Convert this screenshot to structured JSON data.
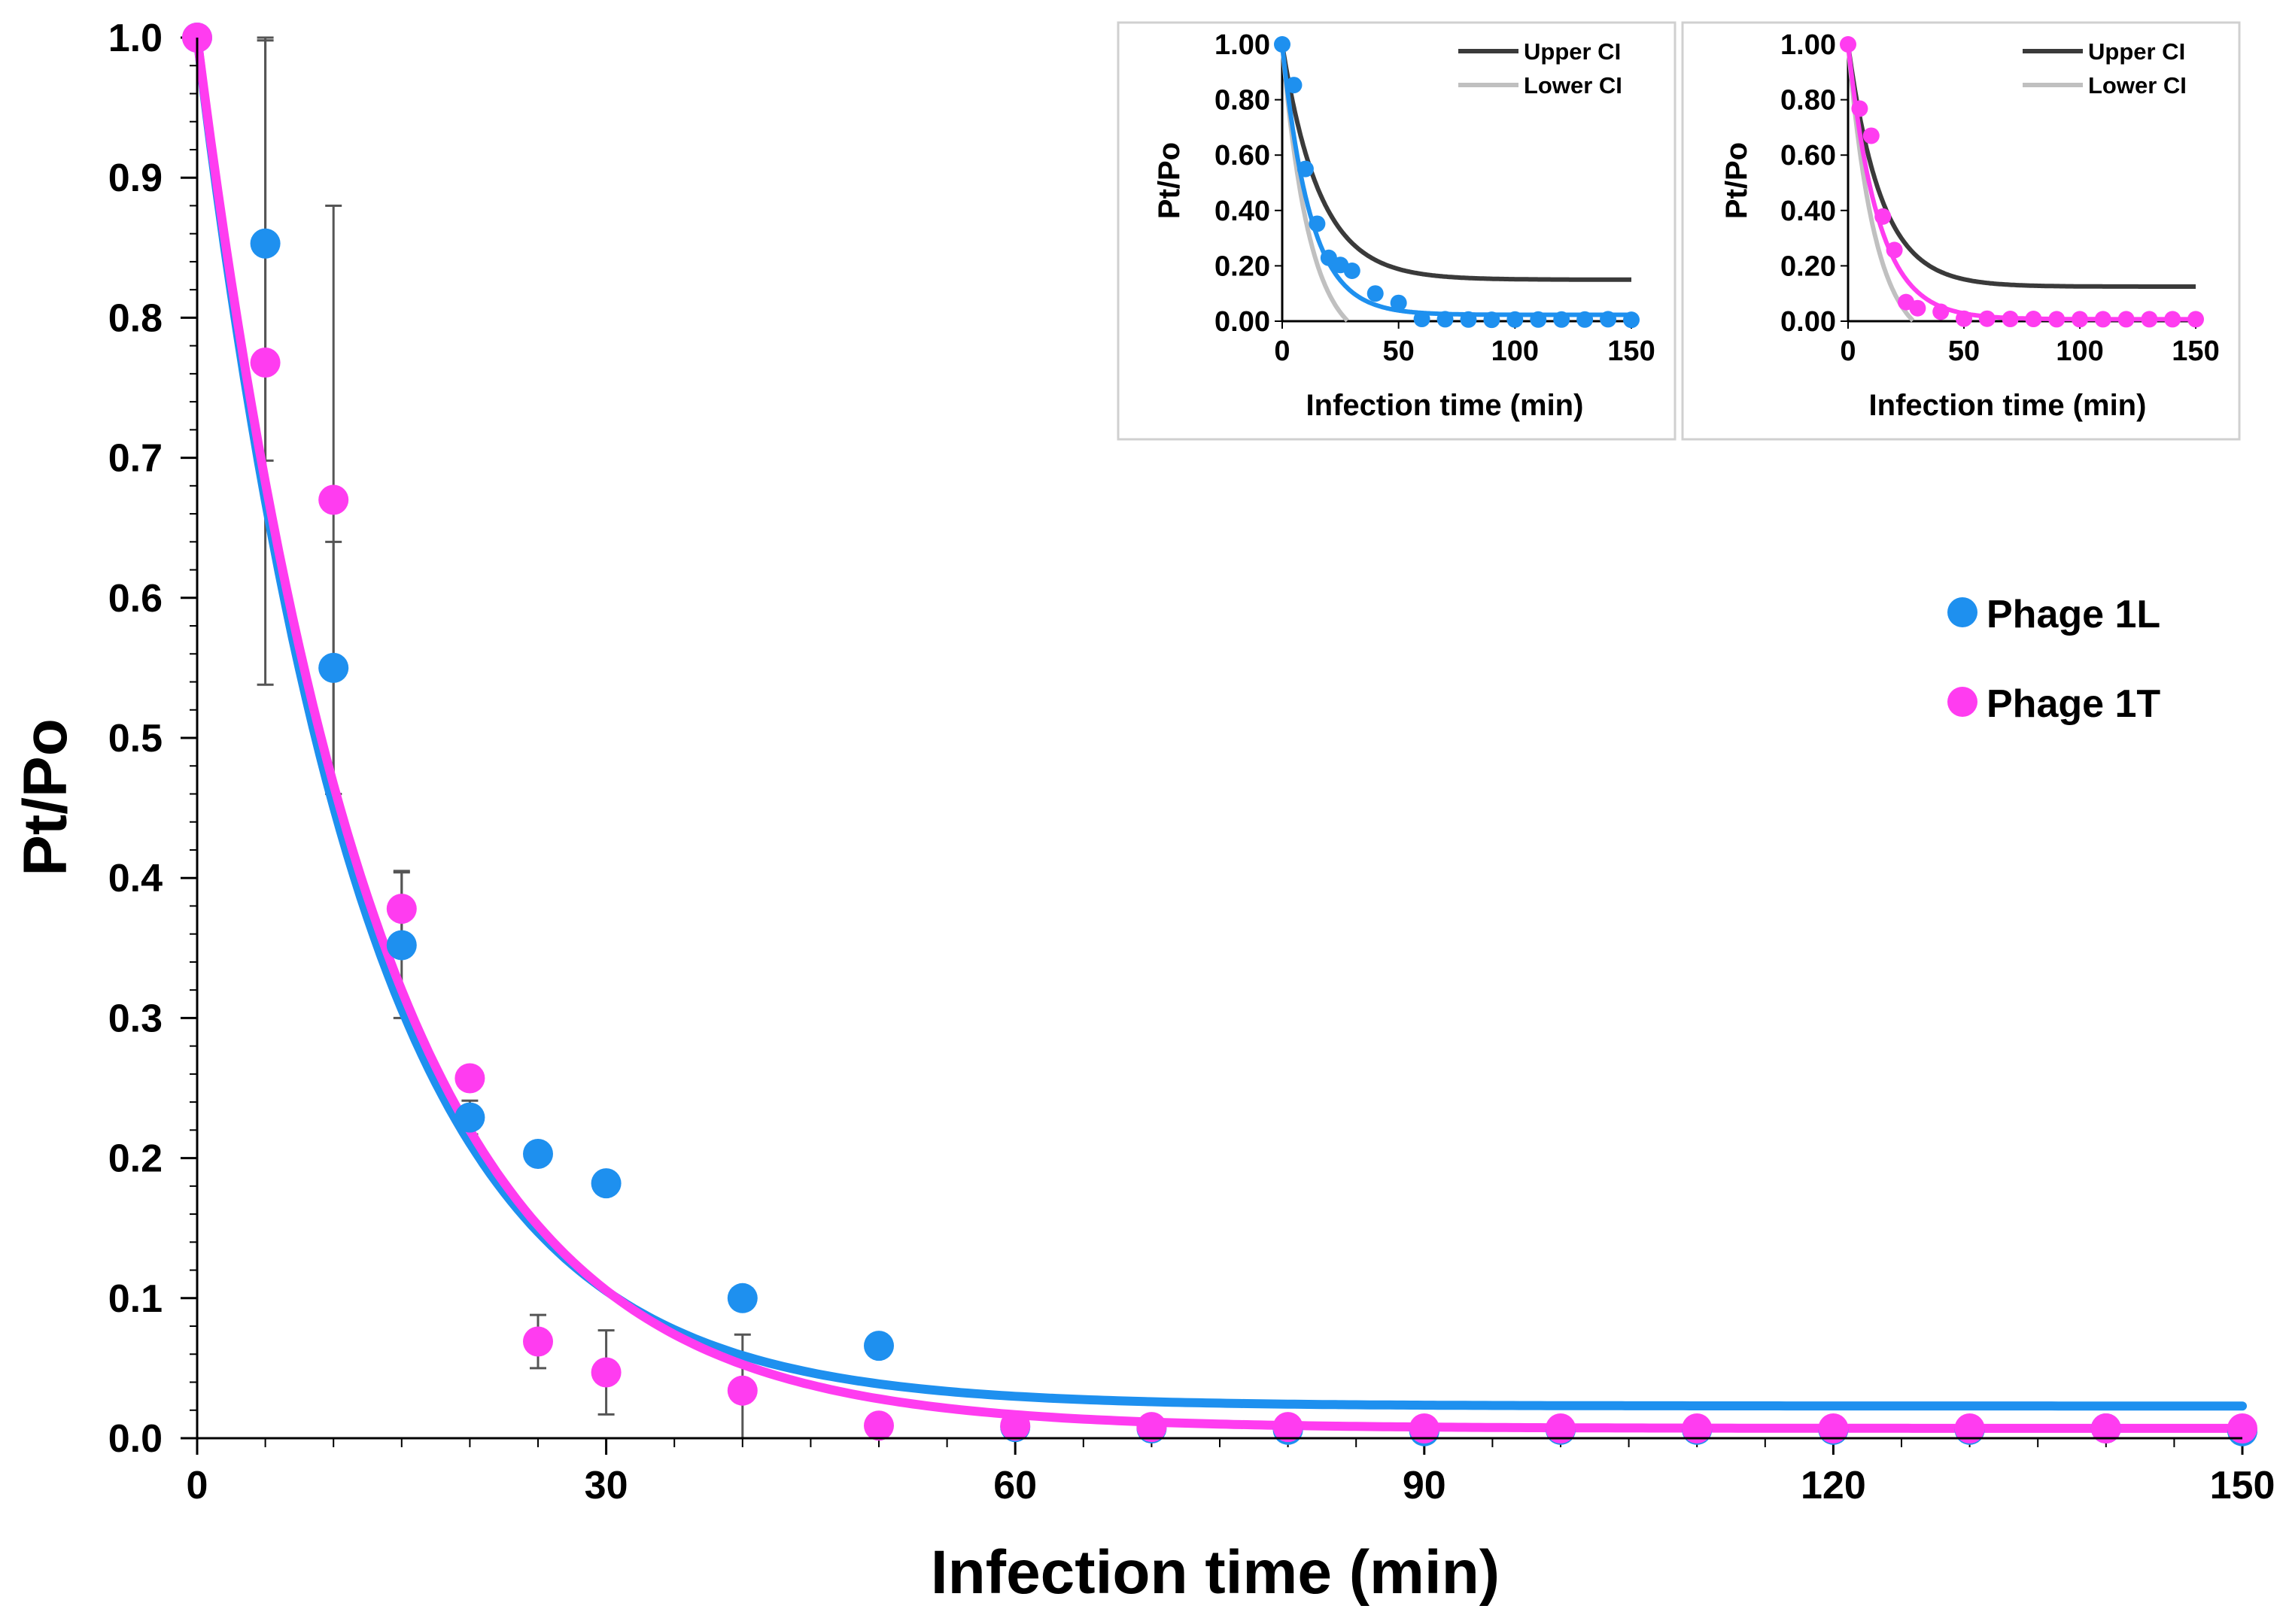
{
  "colors": {
    "phage1L": "#1e90ef",
    "phage1T": "#ff3cf0",
    "upper_ci": "#3a3a3a",
    "lower_ci": "#c0c0c0",
    "axis": "#000000",
    "errorbar": "#555555",
    "inset_border": "#d0d0d0"
  },
  "chart_data": [
    {
      "id": "main",
      "type": "scatter",
      "xlabel": "Infection time (min)",
      "ylabel": "Pt/Po",
      "xlim": [
        0,
        150
      ],
      "ylim": [
        0,
        1.0
      ],
      "xticks": [
        0,
        30,
        60,
        90,
        120,
        150
      ],
      "xtick_labels": [
        "0",
        "30",
        "60",
        "90",
        "120",
        "150"
      ],
      "yticks": [
        0,
        0.1,
        0.2,
        0.3,
        0.4,
        0.5,
        0.6,
        0.7,
        0.8,
        0.9,
        1.0
      ],
      "ytick_labels": [
        "0.0",
        "0.1",
        "0.2",
        "0.3",
        "0.4",
        "0.5",
        "0.6",
        "0.7",
        "0.8",
        "0.9",
        "1.0"
      ],
      "x_minor_step": 5,
      "y_minor_step": 0.02,
      "legend_position": "right",
      "series": [
        {
          "name": "Phage 1L",
          "color_key": "phage1L",
          "points": [
            {
              "x": 0,
              "y": 1.0
            },
            {
              "x": 5,
              "y": 0.853,
              "err": 0.155
            },
            {
              "x": 10,
              "y": 0.55,
              "err": 0.09
            },
            {
              "x": 15,
              "y": 0.352,
              "err": 0.052
            },
            {
              "x": 20,
              "y": 0.229,
              "err": 0.012
            },
            {
              "x": 25,
              "y": 0.203
            },
            {
              "x": 30,
              "y": 0.182
            },
            {
              "x": 40,
              "y": 0.1
            },
            {
              "x": 50,
              "y": 0.066
            },
            {
              "x": 60,
              "y": 0.008
            },
            {
              "x": 70,
              "y": 0.007
            },
            {
              "x": 80,
              "y": 0.006
            },
            {
              "x": 90,
              "y": 0.005
            },
            {
              "x": 100,
              "y": 0.006
            },
            {
              "x": 110,
              "y": 0.006
            },
            {
              "x": 120,
              "y": 0.006
            },
            {
              "x": 130,
              "y": 0.006
            },
            {
              "x": 140,
              "y": 0.007
            },
            {
              "x": 150,
              "y": 0.005
            }
          ],
          "fit": {
            "model": "plateau + span*exp(-k*x)",
            "plateau": 0.023,
            "span": 0.977,
            "k": 0.0825
          }
        },
        {
          "name": "Phage 1T",
          "color_key": "phage1T",
          "points": [
            {
              "x": 0,
              "y": 1.0
            },
            {
              "x": 5,
              "y": 0.768,
              "err": 0.23
            },
            {
              "x": 10,
              "y": 0.67,
              "err": 0.21
            },
            {
              "x": 15,
              "y": 0.378,
              "err": 0.027
            },
            {
              "x": 20,
              "y": 0.257
            },
            {
              "x": 25,
              "y": 0.069,
              "err": 0.019
            },
            {
              "x": 30,
              "y": 0.047,
              "err": 0.03
            },
            {
              "x": 40,
              "y": 0.034,
              "err": 0.04
            },
            {
              "x": 50,
              "y": 0.009
            },
            {
              "x": 60,
              "y": 0.009
            },
            {
              "x": 70,
              "y": 0.008
            },
            {
              "x": 80,
              "y": 0.008
            },
            {
              "x": 90,
              "y": 0.007
            },
            {
              "x": 100,
              "y": 0.007
            },
            {
              "x": 110,
              "y": 0.007
            },
            {
              "x": 120,
              "y": 0.007
            },
            {
              "x": 130,
              "y": 0.007
            },
            {
              "x": 140,
              "y": 0.007
            },
            {
              "x": 150,
              "y": 0.007
            }
          ],
          "fit": {
            "model": "plateau + span*exp(-k*x)",
            "plateau": 0.007,
            "span": 0.993,
            "k": 0.077
          }
        }
      ]
    },
    {
      "id": "inset_1L",
      "type": "scatter",
      "xlabel": "Infection time (min)",
      "ylabel": "Pt/Po",
      "xlim": [
        0,
        150
      ],
      "ylim": [
        0,
        1.0
      ],
      "xticks": [
        0,
        50,
        100,
        150
      ],
      "xtick_labels": [
        "0",
        "50",
        "100",
        "150"
      ],
      "yticks": [
        0,
        0.2,
        0.4,
        0.6,
        0.8,
        1.0
      ],
      "ytick_labels": [
        "0.00",
        "0.20",
        "0.40",
        "0.60",
        "0.80",
        "1.00"
      ],
      "legend_position": "top-right",
      "series": [
        {
          "name": "Phage 1L",
          "color_key": "phage1L",
          "points": [
            {
              "x": 0,
              "y": 1.0
            },
            {
              "x": 5,
              "y": 0.853
            },
            {
              "x": 10,
              "y": 0.55
            },
            {
              "x": 15,
              "y": 0.352
            },
            {
              "x": 20,
              "y": 0.229
            },
            {
              "x": 25,
              "y": 0.203
            },
            {
              "x": 30,
              "y": 0.182
            },
            {
              "x": 40,
              "y": 0.1
            },
            {
              "x": 50,
              "y": 0.066
            },
            {
              "x": 60,
              "y": 0.008
            },
            {
              "x": 70,
              "y": 0.007
            },
            {
              "x": 80,
              "y": 0.006
            },
            {
              "x": 90,
              "y": 0.005
            },
            {
              "x": 100,
              "y": 0.006
            },
            {
              "x": 110,
              "y": 0.006
            },
            {
              "x": 120,
              "y": 0.006
            },
            {
              "x": 130,
              "y": 0.006
            },
            {
              "x": 140,
              "y": 0.007
            },
            {
              "x": 150,
              "y": 0.005
            }
          ],
          "fit": {
            "model": "plateau + span*exp(-k*x)",
            "plateau": 0.023,
            "span": 0.977,
            "k": 0.0825
          }
        }
      ],
      "ci_lines": [
        {
          "name": "Upper CI",
          "color_key": "upper_ci",
          "model": "plateau + span*exp(-k*x)",
          "plateau": 0.15,
          "span": 0.85,
          "k": 0.062
        },
        {
          "name": "Lower CI",
          "color_key": "lower_ci",
          "model": "plateau + span*exp(-k*x)",
          "plateau": -0.1,
          "span": 1.1,
          "k": 0.085
        }
      ]
    },
    {
      "id": "inset_1T",
      "type": "scatter",
      "xlabel": "Infection time (min)",
      "ylabel": "Pt/Po",
      "xlim": [
        0,
        150
      ],
      "ylim": [
        0,
        1.0
      ],
      "xticks": [
        0,
        50,
        100,
        150
      ],
      "xtick_labels": [
        "0",
        "50",
        "100",
        "150"
      ],
      "yticks": [
        0,
        0.2,
        0.4,
        0.6,
        0.8,
        1.0
      ],
      "ytick_labels": [
        "0.00",
        "0.20",
        "0.40",
        "0.60",
        "0.80",
        "1.00"
      ],
      "legend_position": "top-right",
      "series": [
        {
          "name": "Phage 1T",
          "color_key": "phage1T",
          "points": [
            {
              "x": 0,
              "y": 1.0
            },
            {
              "x": 5,
              "y": 0.768
            },
            {
              "x": 10,
              "y": 0.67
            },
            {
              "x": 15,
              "y": 0.378
            },
            {
              "x": 20,
              "y": 0.257
            },
            {
              "x": 25,
              "y": 0.069
            },
            {
              "x": 30,
              "y": 0.047
            },
            {
              "x": 40,
              "y": 0.034
            },
            {
              "x": 50,
              "y": 0.009
            },
            {
              "x": 60,
              "y": 0.009
            },
            {
              "x": 70,
              "y": 0.008
            },
            {
              "x": 80,
              "y": 0.008
            },
            {
              "x": 90,
              "y": 0.007
            },
            {
              "x": 100,
              "y": 0.007
            },
            {
              "x": 110,
              "y": 0.007
            },
            {
              "x": 120,
              "y": 0.007
            },
            {
              "x": 130,
              "y": 0.007
            },
            {
              "x": 140,
              "y": 0.007
            },
            {
              "x": 150,
              "y": 0.007
            }
          ],
          "fit": {
            "model": "plateau + span*exp(-k*x)",
            "plateau": 0.007,
            "span": 0.993,
            "k": 0.077
          }
        }
      ],
      "ci_lines": [
        {
          "name": "Upper CI",
          "color_key": "upper_ci",
          "model": "plateau + span*exp(-k*x)",
          "plateau": 0.125,
          "span": 0.875,
          "k": 0.07
        },
        {
          "name": "Lower CI",
          "color_key": "lower_ci",
          "model": "plateau + span*exp(-k*x)",
          "plateau": -0.1,
          "span": 1.1,
          "k": 0.085
        }
      ]
    }
  ]
}
